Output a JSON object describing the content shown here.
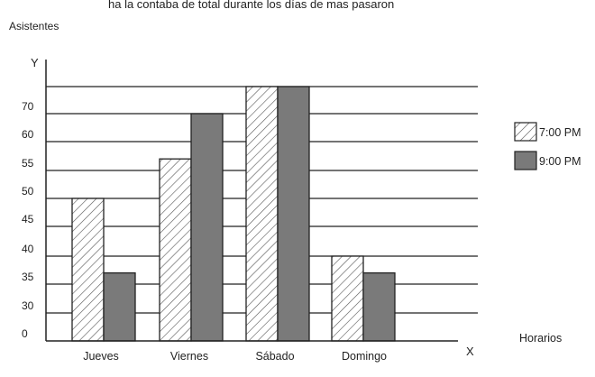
{
  "header_text": "ha la contaba de total durante los días de mas pasaron",
  "chart_data": {
    "type": "bar",
    "ylabel": "Asistentes",
    "xlabel": "Horarios",
    "y_axis_letter": "Y",
    "x_axis_letter": "X",
    "y_ticks": [
      "0",
      "30",
      "35",
      "40",
      "45",
      "50",
      "55",
      "60",
      "70"
    ],
    "categories": [
      "Jueves",
      "Viernes",
      "Sábado",
      "Domingo"
    ],
    "series": [
      {
        "name": "7:00 PM",
        "values": [
          50,
          57,
          80,
          40
        ],
        "pattern": "hatched"
      },
      {
        "name": "9:00 PM",
        "values": [
          37,
          70,
          80,
          37
        ],
        "pattern": "solid"
      }
    ],
    "colors": {
      "solid_fill": "#7a7a7a",
      "hatch_fill": "#ffffff",
      "line": "#222222"
    },
    "grid": true,
    "legend": "right"
  }
}
